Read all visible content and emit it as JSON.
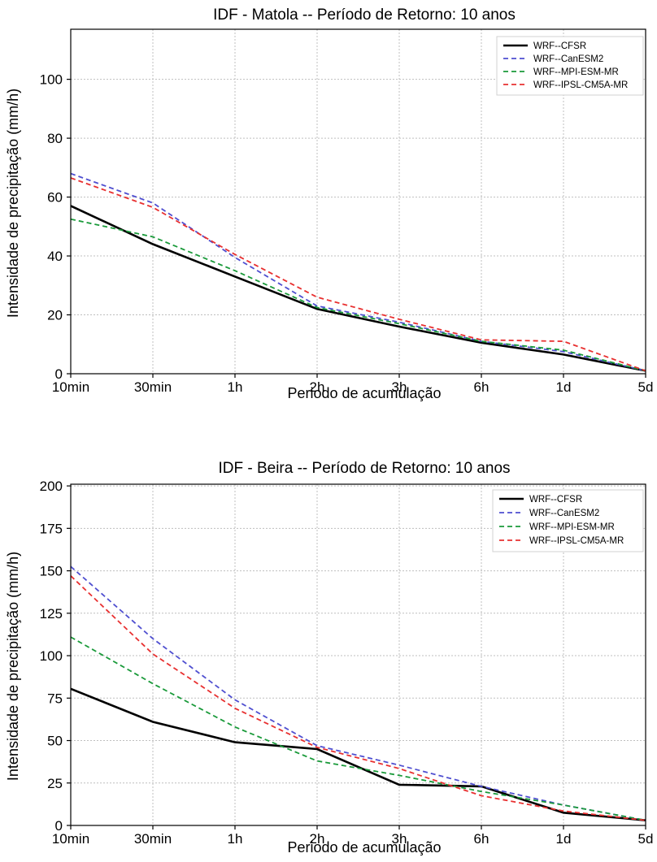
{
  "chart_data": [
    {
      "type": "line",
      "title": "IDF - Matola -- Período de Retorno: 10 anos",
      "xlabel": "Periodo de acumulação",
      "ylabel": "Intensidade de precipitação (mm/h)",
      "categories": [
        "10min",
        "30min",
        "1h",
        "2h",
        "3h",
        "6h",
        "1d",
        "5d"
      ],
      "ylim": [
        0,
        117
      ],
      "yticks": [
        0,
        20,
        40,
        60,
        80,
        100
      ],
      "grid": true,
      "legend_position": "top-right",
      "series": [
        {
          "name": "WRF--CFSR",
          "color": "#000000",
          "style": "solid",
          "values": [
            57,
            44,
            33,
            22,
            16,
            10.5,
            6.5,
            1
          ]
        },
        {
          "name": "WRF--CanESM2",
          "color": "#4f4fd0",
          "style": "dashed",
          "values": [
            68,
            58,
            39.5,
            23,
            17.5,
            11,
            7.5,
            1
          ]
        },
        {
          "name": "WRF--MPI-ESM-MR",
          "color": "#1a9a3a",
          "style": "dashed",
          "values": [
            52.5,
            46.5,
            35,
            22.5,
            17,
            11,
            8,
            1
          ]
        },
        {
          "name": "WRF--IPSL-CM5A-MR",
          "color": "#e83030",
          "style": "dashed",
          "values": [
            66.5,
            56.5,
            40.5,
            26,
            18.5,
            11.5,
            11,
            1
          ]
        }
      ]
    },
    {
      "type": "line",
      "title": "IDF - Beira -- Período de Retorno: 10 anos",
      "xlabel": "Periodo de acumulação",
      "ylabel": "Intensidade de precipitação (mm/h)",
      "categories": [
        "10min",
        "30min",
        "1h",
        "2h",
        "3h",
        "6h",
        "1d",
        "5d"
      ],
      "ylim": [
        0,
        201
      ],
      "yticks": [
        0,
        25,
        50,
        75,
        100,
        125,
        150,
        175,
        200
      ],
      "grid": true,
      "legend_position": "top-right",
      "series": [
        {
          "name": "WRF--CFSR",
          "color": "#000000",
          "style": "solid",
          "values": [
            80.5,
            61,
            49,
            45,
            24,
            23,
            7.5,
            3
          ]
        },
        {
          "name": "WRF--CanESM2",
          "color": "#4f4fd0",
          "style": "dashed",
          "values": [
            152.5,
            110,
            74,
            47,
            35.5,
            23,
            12,
            3
          ]
        },
        {
          "name": "WRF--MPI-ESM-MR",
          "color": "#1a9a3a",
          "style": "dashed",
          "values": [
            111,
            83.5,
            58,
            38,
            29.5,
            20,
            12,
            3
          ]
        },
        {
          "name": "WRF--IPSL-CM5A-MR",
          "color": "#e83030",
          "style": "dashed",
          "values": [
            147,
            101,
            69,
            46,
            33.5,
            17.5,
            8.5,
            3
          ]
        }
      ]
    }
  ]
}
